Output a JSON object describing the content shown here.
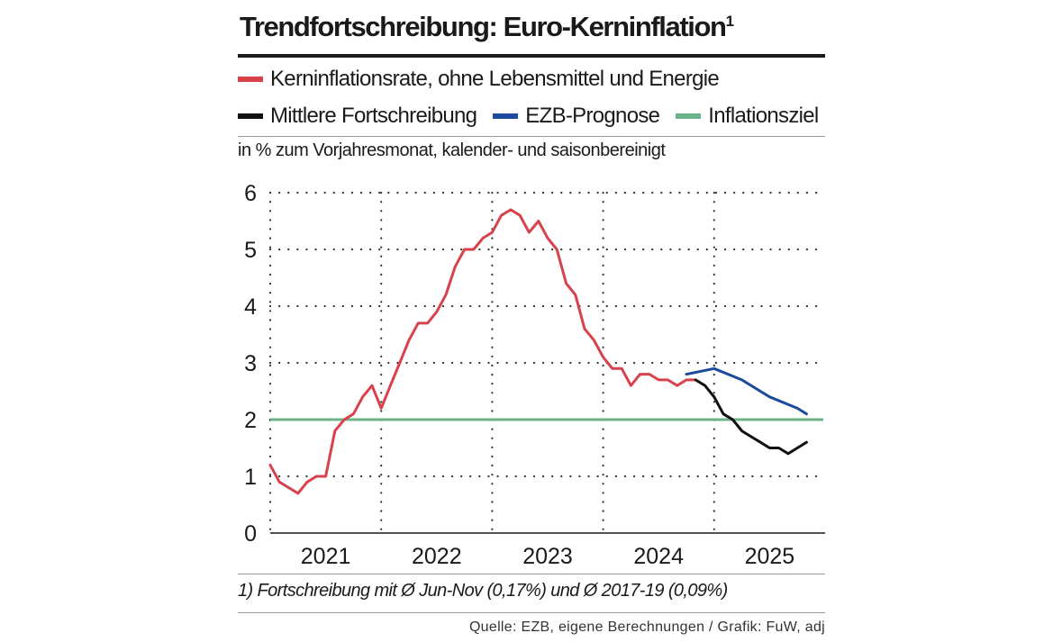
{
  "title": "Trendfortschreibung: Euro-Kerninflation",
  "title_sup": "1",
  "legend": [
    {
      "label": "Kerninflationsrate, ohne Lebensmittel und Energie",
      "color": "#d9414b"
    },
    {
      "label": "Mittlere Fortschreibung",
      "color": "#111111"
    },
    {
      "label": "EZB-Prognose",
      "color": "#1d4a9c"
    },
    {
      "label": "Inflationsziel",
      "color": "#6db38a"
    }
  ],
  "unit_label": "in % zum Vorjahresmonat, kalender- und saisonbereinigt",
  "footnote": "1) Fortschreibung mit Ø Jun-Nov (0,17%) und Ø 2017-19 (0,09%)",
  "source": "Quelle: EZB, eigene Berechnungen / Grafik: FuW, adj",
  "chart_data": {
    "type": "line",
    "x_unit": "years",
    "xlim": [
      2020.5,
      2025.5
    ],
    "ylim": [
      0,
      6
    ],
    "yticks": [
      0,
      1,
      2,
      3,
      4,
      5,
      6
    ],
    "xtick_labels": [
      {
        "label": "2021",
        "x": 2021.0
      },
      {
        "label": "2022",
        "x": 2022.0
      },
      {
        "label": "2023",
        "x": 2023.0
      },
      {
        "label": "2024",
        "x": 2024.0
      },
      {
        "label": "2025",
        "x": 2025.0
      }
    ],
    "vgrid": [
      2020.5,
      2021.5,
      2022.5,
      2023.5,
      2024.5
    ],
    "grid": true,
    "target": {
      "name": "Inflationsziel",
      "value": 2.0,
      "color": "#6db38a"
    },
    "series": [
      {
        "name": "Kerninflationsrate, ohne Lebensmittel und Energie",
        "color": "#d9414b",
        "x": [
          2020.5,
          2020.583,
          2020.667,
          2020.75,
          2020.833,
          2020.917,
          2021.0,
          2021.083,
          2021.167,
          2021.25,
          2021.333,
          2021.417,
          2021.5,
          2021.583,
          2021.667,
          2021.75,
          2021.833,
          2021.917,
          2022.0,
          2022.083,
          2022.167,
          2022.25,
          2022.333,
          2022.417,
          2022.5,
          2022.583,
          2022.667,
          2022.75,
          2022.833,
          2022.917,
          2023.0,
          2023.083,
          2023.167,
          2023.25,
          2023.333,
          2023.417,
          2023.5,
          2023.583,
          2023.667,
          2023.75,
          2023.833,
          2023.917,
          2024.0,
          2024.083,
          2024.167,
          2024.25,
          2024.333
        ],
        "y": [
          1.2,
          0.9,
          0.8,
          0.7,
          0.9,
          1.0,
          1.0,
          1.8,
          2.0,
          2.1,
          2.4,
          2.6,
          2.2,
          2.6,
          3.0,
          3.4,
          3.7,
          3.7,
          3.9,
          4.2,
          4.7,
          5.0,
          5.0,
          5.2,
          5.3,
          5.6,
          5.7,
          5.6,
          5.3,
          5.5,
          5.2,
          5.0,
          4.4,
          4.2,
          3.6,
          3.4,
          3.1,
          2.9,
          2.9,
          2.6,
          2.8,
          2.8,
          2.7,
          2.7,
          2.6,
          2.7,
          2.7
        ]
      },
      {
        "name": "Mittlere Fortschreibung",
        "color": "#111111",
        "x": [
          2024.333,
          2024.417,
          2024.5,
          2024.583,
          2024.667,
          2024.75,
          2024.833,
          2024.917,
          2025.0,
          2025.083,
          2025.167,
          2025.25,
          2025.333
        ],
        "y": [
          2.7,
          2.6,
          2.4,
          2.1,
          2.0,
          1.8,
          1.7,
          1.6,
          1.5,
          1.5,
          1.4,
          1.5,
          1.6
        ]
      },
      {
        "name": "EZB-Prognose",
        "color": "#1d4a9c",
        "x": [
          2024.25,
          2024.5,
          2024.75,
          2025.0,
          2025.25,
          2025.333
        ],
        "y": [
          2.8,
          2.9,
          2.7,
          2.4,
          2.2,
          2.1
        ]
      }
    ]
  }
}
